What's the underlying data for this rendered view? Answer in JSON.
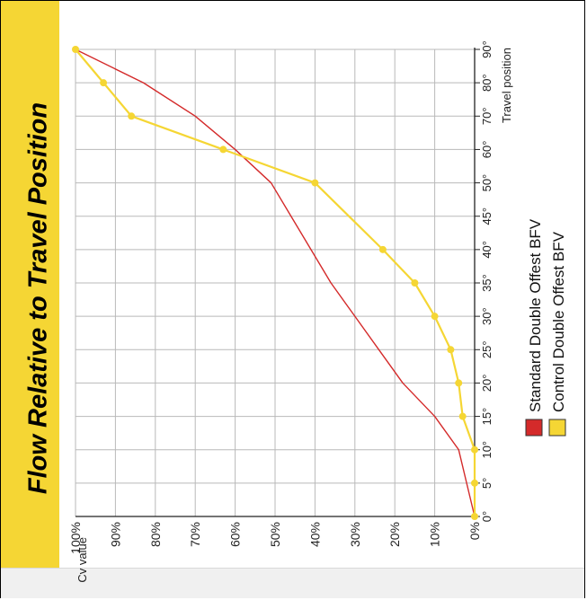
{
  "chart_data": {
    "type": "line",
    "title": "Flow Relative to Travel Position",
    "xlabel": "Travel position",
    "ylabel": "Cv value",
    "x_ticks": [
      "0°",
      "5°",
      "10°",
      "15°",
      "20°",
      "25°",
      "30°",
      "35°",
      "40°",
      "45°",
      "50°",
      "60°",
      "70°",
      "80°",
      "90°"
    ],
    "y_ticks": [
      "0%",
      "10%",
      "20%",
      "30%",
      "40%",
      "50%",
      "60%",
      "70%",
      "80%",
      "90%",
      "100%"
    ],
    "y_unit": "%",
    "ylim": [
      0,
      100
    ],
    "grid": true,
    "legend_position": "right",
    "orientation": "rotated -90°",
    "series": [
      {
        "name": "Standard Double Offest BFV",
        "color": "#d42a2a",
        "markers": false,
        "x": [
          "0°",
          "5°",
          "10°",
          "15°",
          "20°",
          "25°",
          "30°",
          "35°",
          "40°",
          "45°",
          "50°",
          "60°",
          "70°",
          "80°",
          "90°"
        ],
        "values": [
          0,
          2,
          4,
          10,
          18,
          24,
          30,
          36,
          41,
          46,
          51,
          60,
          70,
          83,
          100
        ]
      },
      {
        "name": "Control Double Offest BFV",
        "color": "#f5d634",
        "markers": true,
        "x": [
          "0°",
          "5°",
          "10°",
          "15°",
          "20°",
          "25°",
          "30°",
          "35°",
          "40°",
          "45°",
          "50°",
          "60°",
          "70°",
          "80°",
          "90°"
        ],
        "values": [
          0,
          0,
          0,
          3,
          4,
          6,
          10,
          15,
          23,
          null,
          40,
          63,
          86,
          93,
          100
        ]
      }
    ]
  }
}
